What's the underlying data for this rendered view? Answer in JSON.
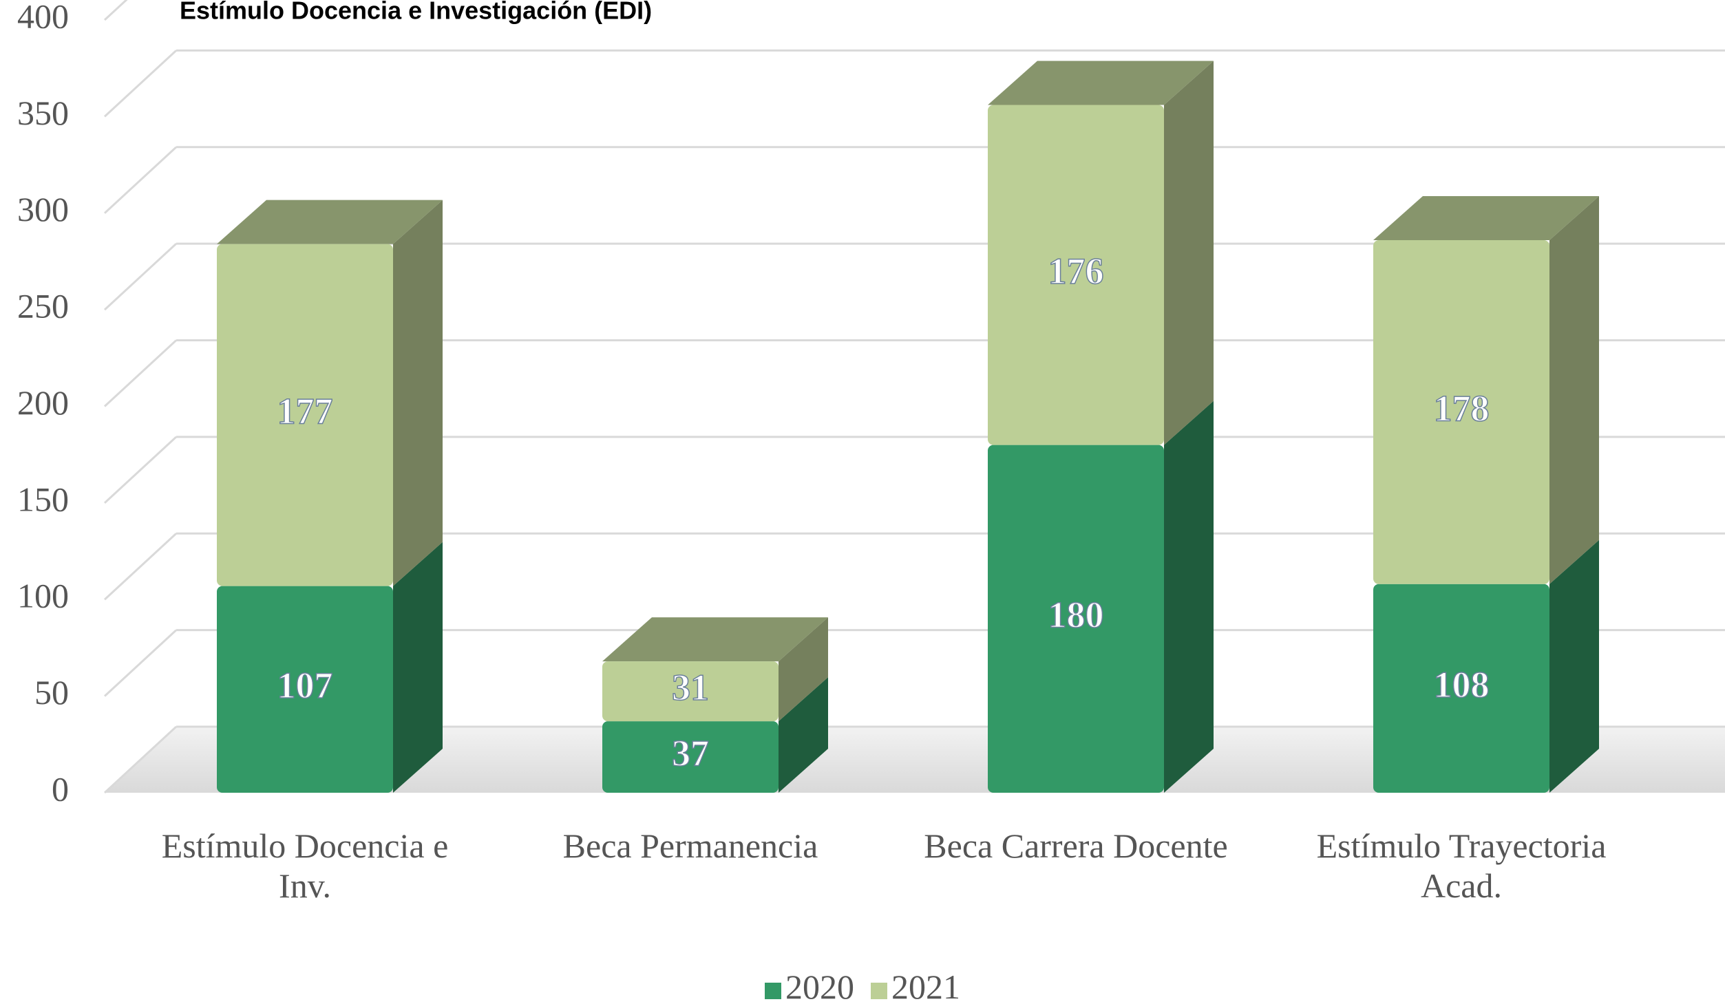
{
  "chart_data": {
    "type": "bar3d_stacked",
    "title": "Estímulo Docencia e Investigación (EDI)",
    "categories": [
      "Estímulo Docencia e Inv.",
      "Beca Permanencia",
      "Beca Carrera Docente",
      "Estímulo Trayectoria Acad."
    ],
    "series": [
      {
        "name": "2020",
        "color": "#339966",
        "values": [
          107,
          37,
          180,
          108
        ]
      },
      {
        "name": "2021",
        "color": "#bccf96",
        "values": [
          177,
          31,
          176,
          178
        ]
      }
    ],
    "ylim": [
      0,
      400
    ],
    "yticks": [
      0,
      50,
      100,
      150,
      200,
      250,
      300,
      350,
      400
    ],
    "grid": true,
    "legend": "bottom"
  }
}
